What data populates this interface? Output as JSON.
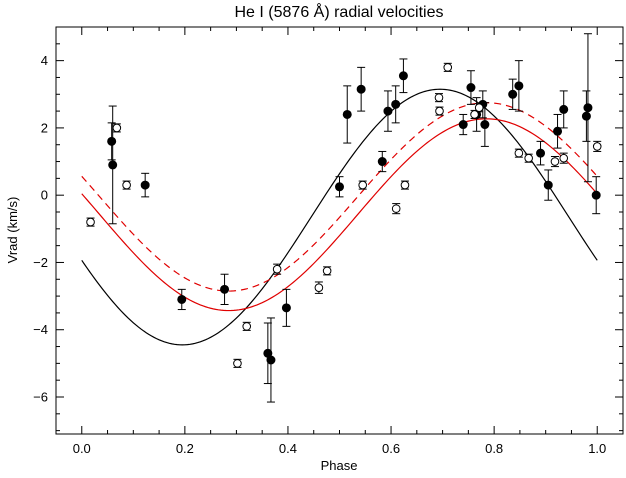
{
  "chart_data": {
    "type": "scatter",
    "title": "He I (5876 Å) radial velocities",
    "xlabel": "Phase",
    "ylabel": "Vrad (km/s)",
    "xlim": [
      -0.05,
      1.05
    ],
    "ylim": [
      -7.1,
      5.0
    ],
    "xticks": [
      0.0,
      0.2,
      0.4,
      0.6,
      0.8,
      1.0
    ],
    "xtick_labels": [
      "0.0",
      "0.2",
      "0.4",
      "0.6",
      "0.8",
      "1.0"
    ],
    "yticks": [
      -6,
      -4,
      -2,
      0,
      2,
      4
    ],
    "ytick_labels": [
      "−6",
      "−4",
      "−2",
      "0",
      "2",
      "4"
    ],
    "grid": false,
    "colors": {
      "fit_black": "#000000",
      "fit_red": "#e00000",
      "markers": "#000000"
    },
    "series": [
      {
        "marker": "filled-circle",
        "points": [
          {
            "x": 0.058,
            "y": 1.6,
            "err": 0.55
          },
          {
            "x": 0.06,
            "y": 0.9,
            "err": 1.75
          },
          {
            "x": 0.123,
            "y": 0.3,
            "err": 0.35
          },
          {
            "x": 0.194,
            "y": -3.1,
            "err": 0.3
          },
          {
            "x": 0.277,
            "y": -2.8,
            "err": 0.45
          },
          {
            "x": 0.361,
            "y": -4.7,
            "err": 0.9
          },
          {
            "x": 0.367,
            "y": -4.9,
            "err": 1.25
          },
          {
            "x": 0.397,
            "y": -3.35,
            "err": 0.55
          },
          {
            "x": 0.5,
            "y": 0.25,
            "err": 0.3
          },
          {
            "x": 0.515,
            "y": 2.4,
            "err": 0.85
          },
          {
            "x": 0.542,
            "y": 3.15,
            "err": 0.65
          },
          {
            "x": 0.583,
            "y": 1.0,
            "err": 0.3
          },
          {
            "x": 0.594,
            "y": 2.5,
            "err": 0.6
          },
          {
            "x": 0.609,
            "y": 2.7,
            "err": 0.55
          },
          {
            "x": 0.624,
            "y": 3.55,
            "err": 0.5
          },
          {
            "x": 0.74,
            "y": 2.1,
            "err": 0.3
          },
          {
            "x": 0.755,
            "y": 3.2,
            "err": 0.5
          },
          {
            "x": 0.766,
            "y": 2.4,
            "err": 0.5
          },
          {
            "x": 0.778,
            "y": 2.7,
            "err": 0.4
          },
          {
            "x": 0.782,
            "y": 2.1,
            "err": 0.65
          },
          {
            "x": 0.836,
            "y": 3.0,
            "err": 0.45
          },
          {
            "x": 0.848,
            "y": 3.25,
            "err": 0.75
          },
          {
            "x": 0.89,
            "y": 1.25,
            "err": 0.35
          },
          {
            "x": 0.905,
            "y": 0.3,
            "err": 0.45
          },
          {
            "x": 0.923,
            "y": 1.9,
            "err": 0.5
          },
          {
            "x": 0.935,
            "y": 2.55,
            "err": 0.55
          },
          {
            "x": 0.979,
            "y": 2.35,
            "err": 0.75
          },
          {
            "x": 0.982,
            "y": 2.6,
            "err": 2.2
          },
          {
            "x": 0.998,
            "y": 0.0,
            "err": 0.55
          }
        ]
      },
      {
        "marker": "open-circle",
        "points": [
          {
            "x": 0.017,
            "y": -0.8,
            "err": 0.12
          },
          {
            "x": 0.068,
            "y": 2.0,
            "err": 0.12
          },
          {
            "x": 0.087,
            "y": 0.3,
            "err": 0.12
          },
          {
            "x": 0.302,
            "y": -5.0,
            "err": 0.12
          },
          {
            "x": 0.32,
            "y": -3.9,
            "err": 0.12
          },
          {
            "x": 0.379,
            "y": -2.2,
            "err": 0.15
          },
          {
            "x": 0.46,
            "y": -2.75,
            "err": 0.17
          },
          {
            "x": 0.476,
            "y": -2.25,
            "err": 0.12
          },
          {
            "x": 0.545,
            "y": 0.3,
            "err": 0.12
          },
          {
            "x": 0.61,
            "y": -0.4,
            "err": 0.15
          },
          {
            "x": 0.627,
            "y": 0.3,
            "err": 0.12
          },
          {
            "x": 0.693,
            "y": 2.9,
            "err": 0.12
          },
          {
            "x": 0.694,
            "y": 2.5,
            "err": 0.12
          },
          {
            "x": 0.71,
            "y": 3.8,
            "err": 0.12
          },
          {
            "x": 0.762,
            "y": 2.4,
            "err": 0.12
          },
          {
            "x": 0.771,
            "y": 2.6,
            "err": 0.12
          },
          {
            "x": 0.848,
            "y": 1.25,
            "err": 0.12
          },
          {
            "x": 0.867,
            "y": 1.1,
            "err": 0.12
          },
          {
            "x": 0.918,
            "y": 1.0,
            "err": 0.15
          },
          {
            "x": 0.935,
            "y": 1.1,
            "err": 0.15
          },
          {
            "x": 1.0,
            "y": 1.45,
            "err": 0.15
          }
        ]
      }
    ],
    "curves": [
      {
        "color": "#000000",
        "style": "solid",
        "amplitude": 3.8,
        "offset": -0.65,
        "phase_max": 0.695
      },
      {
        "color": "#e00000",
        "style": "solid",
        "amplitude": 2.85,
        "offset": -0.58,
        "phase_max": 0.785
      },
      {
        "color": "#e00000",
        "style": "dashed",
        "amplitude": 2.8,
        "offset": -0.05,
        "phase_max": 0.785
      }
    ]
  }
}
